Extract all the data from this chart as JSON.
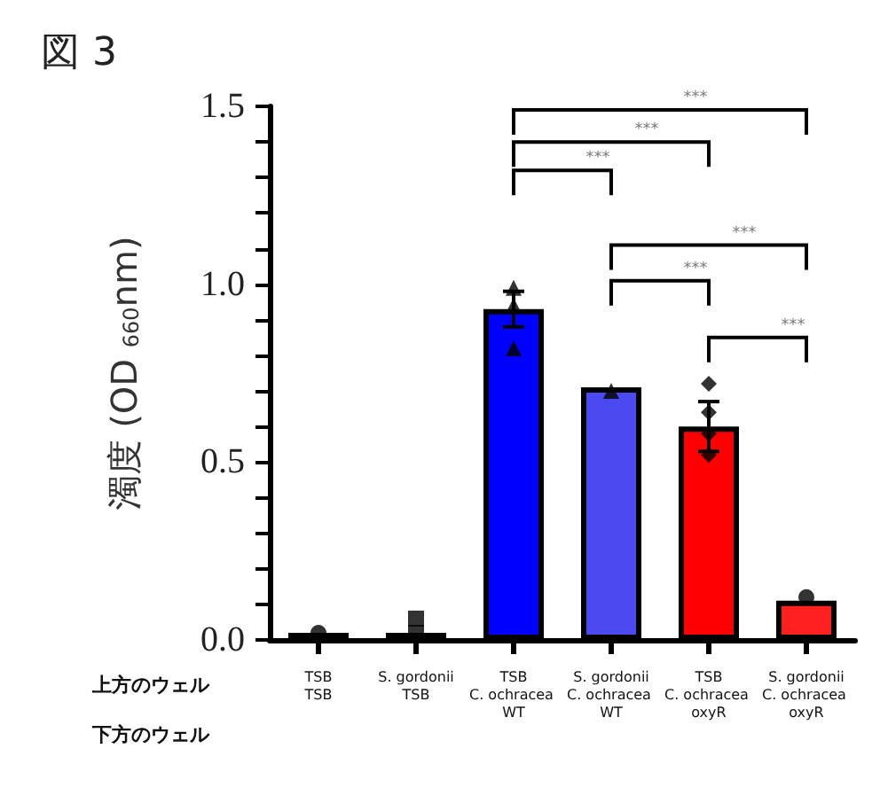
{
  "chart_data": {
    "type": "bar",
    "title": "図 3",
    "ylabel": "濁度 (OD $_{660}$nm)",
    "categories": [
      "TSB\nTSB",
      "S. gordonii\nTSB",
      "TSB\nC. ochracea WT",
      "S. gordonii\nC. ochracea WT",
      "TSB\nC. ochracea oxyR",
      "S. gordonii\nC. ochracea oxyR"
    ],
    "series": [
      {
        "colors": [
          "#000000",
          "#000000",
          "#0000ff",
          "#4a4af0",
          "#ff0000",
          "#ff2020"
        ],
        "values": [
          0.02,
          0.02,
          0.93,
          0.71,
          0.6,
          0.11
        ],
        "errors": [
          null,
          null,
          0.05,
          null,
          0.07,
          null
        ]
      },
      {
        "type": "scatter",
        "marker": "circle",
        "color": "#000000",
        "x": [
          "TSB\nTSB"
        ],
        "values": [
          0.02
        ]
      },
      {
        "type": "scatter",
        "marker": "square",
        "color": "#000000",
        "x": [
          "S. gordonii\nTSB",
          "S. gordonii\nTSB"
        ],
        "values": [
          0.06,
          0.02
        ]
      },
      {
        "type": "scatter",
        "marker": "triangle",
        "color": "#000000",
        "x": [
          "TSB\nC. ochracea WT",
          "TSB\nC. ochracea WT",
          "TSB\nC. ochracea WT"
        ],
        "values": [
          0.99,
          0.94,
          0.82
        ]
      },
      {
        "type": "scatter",
        "marker": "triangle",
        "color": "#000000",
        "x": [
          "S. gordonii\nC. ochracea WT"
        ],
        "values": [
          0.7
        ]
      },
      {
        "type": "scatter",
        "marker": "diamond",
        "color": "#000000",
        "x": [
          "TSB\nC. ochracea oxyR",
          "TSB\nC. ochracea oxyR",
          "TSB\nC. ochracea oxyR",
          "TSB\nC. ochracea oxyR"
        ],
        "values": [
          0.72,
          0.64,
          0.58,
          0.52
        ]
      },
      {
        "type": "scatter",
        "marker": "circle",
        "color": "#000000",
        "x": [
          "S. gordonii\nC. ochracea oxyR"
        ],
        "values": [
          0.12
        ]
      }
    ],
    "ylim": [
      0,
      1.5
    ],
    "yticks": [
      {
        "value": 0,
        "label": "0.0"
      },
      {
        "value": 0.1,
        "label": null
      },
      {
        "value": 0.2,
        "label": null
      },
      {
        "value": 0.3,
        "label": null
      },
      {
        "value": 0.4,
        "label": null
      },
      {
        "value": 0.5,
        "label": "0.5"
      },
      {
        "value": 0.6,
        "label": null
      },
      {
        "value": 0.7,
        "label": null
      },
      {
        "value": 0.8,
        "label": null
      },
      {
        "value": 0.9,
        "label": null
      },
      {
        "value": 1,
        "label": "1.0"
      },
      {
        "value": 1.1,
        "label": null
      },
      {
        "value": 1.2,
        "label": null
      },
      {
        "value": 1.3,
        "label": null
      },
      {
        "value": 1.4,
        "label": null
      },
      {
        "value": 1.5,
        "label": "1.5"
      }
    ],
    "annotations": [
      "上方のウェル",
      "下方のウェル",
      "***",
      "***",
      "***",
      "***",
      "***",
      "***"
    ],
    "grid": false
  }
}
